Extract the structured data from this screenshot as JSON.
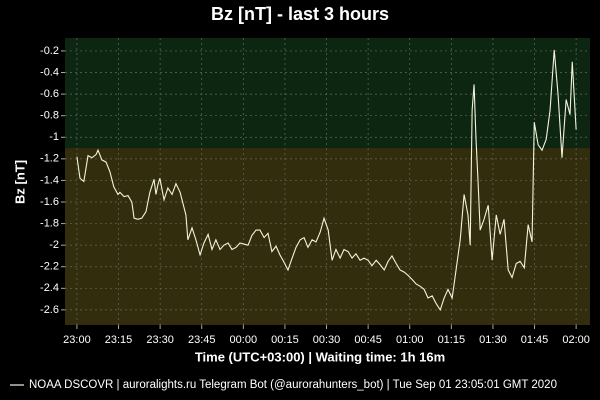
{
  "chart_data": {
    "type": "line",
    "title": "Bz [nT] - last 3 hours",
    "xlabel": "Time (UTC+03:00) | Waiting time: 1h 16m",
    "ylabel": "Bz [nT]",
    "xlim": [
      -4.3,
      185
    ],
    "ylim": [
      -2.74,
      -0.08
    ],
    "xticks": [
      {
        "value": 0,
        "label": "23:00"
      },
      {
        "value": 15,
        "label": "23:15"
      },
      {
        "value": 30,
        "label": "23:30"
      },
      {
        "value": 45,
        "label": "23:45"
      },
      {
        "value": 60,
        "label": "00:00"
      },
      {
        "value": 75,
        "label": "00:15"
      },
      {
        "value": 90,
        "label": "00:30"
      },
      {
        "value": 105,
        "label": "00:45"
      },
      {
        "value": 120,
        "label": "01:00"
      },
      {
        "value": 135,
        "label": "01:15"
      },
      {
        "value": 150,
        "label": "01:30"
      },
      {
        "value": 165,
        "label": "01:45"
      },
      {
        "value": 180,
        "label": "02:00"
      }
    ],
    "yticks": [
      -0.2,
      -0.4,
      -0.6,
      -0.8,
      -1.0,
      -1.2,
      -1.4,
      -1.6,
      -1.8,
      -2.0,
      -2.2,
      -2.4,
      -2.6
    ],
    "grid": true,
    "bands": [
      {
        "from": -1.1,
        "to": -0.08,
        "color": "#0d2612"
      },
      {
        "from": -2.74,
        "to": -1.1,
        "color": "#322d0c"
      }
    ],
    "legend": "bottom",
    "series": [
      {
        "name": "NOAA DSCOVR | auroralights.ru Telegram Bot (@aurorahunters_bot) | Tue Sep 01 23:05:01 GMT 2020",
        "color": "#f4f4dc",
        "x": [
          0,
          1.1,
          2.5,
          4.0,
          5.4,
          6.9,
          7.6,
          9.0,
          10.5,
          11.9,
          13.3,
          14.8,
          15.5,
          17.0,
          18.4,
          19.8,
          20.6,
          22.0,
          23.4,
          24.9,
          26.3,
          27.8,
          28.5,
          29.2,
          29.9,
          31.4,
          32.8,
          34.3,
          35.7,
          37.2,
          37.9,
          39.3,
          40.0,
          41.5,
          42.9,
          44.4,
          45.8,
          47.3,
          48.7,
          50.1,
          51.6,
          53.0,
          54.5,
          55.9,
          57.4,
          58.8,
          60.2,
          61.7,
          63.1,
          64.6,
          66.0,
          67.5,
          68.9,
          70.3,
          71.8,
          73.2,
          74.7,
          76.1,
          77.6,
          79.0,
          80.5,
          81.9,
          83.3,
          84.8,
          86.2,
          87.7,
          89.1,
          90.6,
          92.0,
          93.4,
          94.9,
          96.3,
          97.8,
          99.2,
          100.6,
          102.1,
          103.5,
          105.0,
          106.4,
          107.9,
          109.3,
          110.8,
          112.2,
          113.6,
          115.1,
          116.5,
          118.0,
          119.4,
          120.9,
          122.3,
          123.7,
          125.2,
          126.6,
          128.1,
          129.5,
          131.0,
          132.4,
          133.8,
          135.3,
          136.7,
          138.2,
          139.6,
          141.0,
          141.8,
          142.5,
          143.2,
          143.9,
          144.6,
          145.4,
          146.8,
          148.3,
          149.7,
          151.2,
          152.6,
          154.0,
          155.5,
          156.9,
          158.4,
          159.8,
          161.3,
          162.7,
          164.1,
          164.9,
          166.3,
          167.7,
          169.2,
          170.6,
          172.1,
          173.5,
          174.9,
          176.4,
          177.8,
          178.6,
          180.0
        ],
        "values": [
          -1.18,
          -1.38,
          -1.41,
          -1.17,
          -1.19,
          -1.16,
          -1.12,
          -1.21,
          -1.23,
          -1.32,
          -1.46,
          -1.53,
          -1.51,
          -1.55,
          -1.54,
          -1.6,
          -1.75,
          -1.76,
          -1.75,
          -1.69,
          -1.51,
          -1.39,
          -1.53,
          -1.44,
          -1.38,
          -1.58,
          -1.47,
          -1.53,
          -1.43,
          -1.51,
          -1.58,
          -1.72,
          -1.95,
          -1.84,
          -1.95,
          -2.09,
          -1.98,
          -1.9,
          -2.04,
          -1.95,
          -2.04,
          -2.0,
          -1.98,
          -2.04,
          -2.02,
          -1.98,
          -1.99,
          -2.0,
          -1.91,
          -1.86,
          -1.86,
          -1.93,
          -1.89,
          -2.06,
          -2.01,
          -2.09,
          -2.16,
          -2.23,
          -2.12,
          -2.02,
          -1.95,
          -1.93,
          -2.02,
          -1.95,
          -1.97,
          -1.88,
          -1.75,
          -1.86,
          -2.14,
          -2.04,
          -2.12,
          -2.04,
          -2.06,
          -2.12,
          -2.08,
          -2.14,
          -2.12,
          -2.14,
          -2.19,
          -2.14,
          -2.18,
          -2.23,
          -2.15,
          -2.1,
          -2.17,
          -2.23,
          -2.25,
          -2.28,
          -2.32,
          -2.36,
          -2.38,
          -2.41,
          -2.49,
          -2.47,
          -2.54,
          -2.6,
          -2.49,
          -2.41,
          -2.49,
          -2.23,
          -1.95,
          -1.53,
          -1.72,
          -2.0,
          -0.75,
          -0.51,
          -1.02,
          -1.39,
          -1.86,
          -1.76,
          -1.63,
          -2.14,
          -1.72,
          -1.9,
          -1.76,
          -2.23,
          -2.3,
          -2.17,
          -2.15,
          -2.21,
          -1.81,
          -1.97,
          -0.86,
          -1.07,
          -1.12,
          -1.02,
          -0.75,
          -0.19,
          -0.61,
          -1.19,
          -0.65,
          -0.79,
          -0.3,
          -0.93
        ]
      }
    ]
  }
}
